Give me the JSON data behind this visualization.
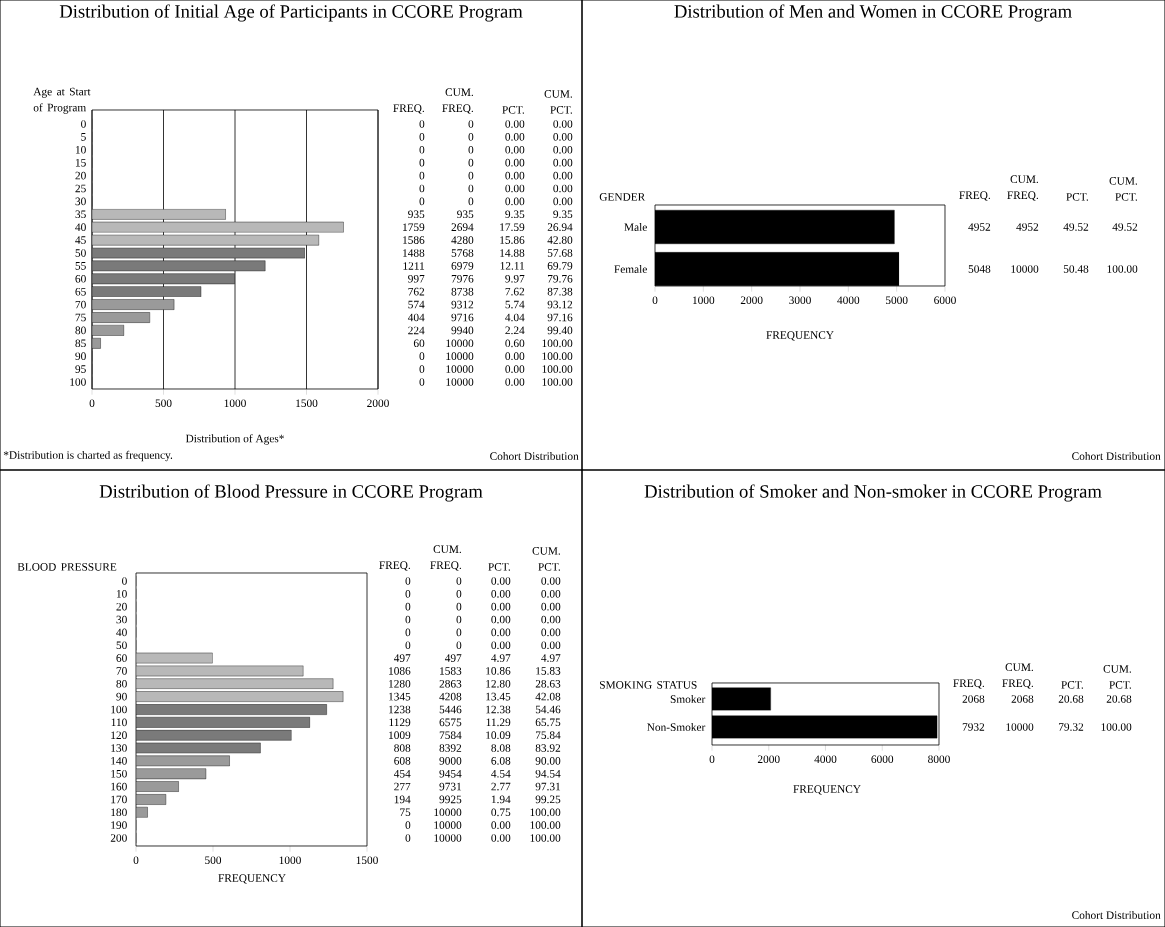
{
  "chart_data": [
    {
      "type": "bar",
      "orientation": "horizontal",
      "title": "Distribution of Initial Age of Participants in CCORE Program",
      "xlabel": "Distribution of Ages*",
      "ylabel": "Age at Start of Program",
      "categories": [
        "0",
        "5",
        "10",
        "15",
        "20",
        "25",
        "30",
        "35",
        "40",
        "45",
        "50",
        "55",
        "60",
        "65",
        "70",
        "75",
        "80",
        "85",
        "90",
        "95",
        "100"
      ],
      "values": [
        0,
        0,
        0,
        0,
        0,
        0,
        0,
        935,
        1759,
        1586,
        1488,
        1211,
        997,
        762,
        574,
        404,
        224,
        60,
        0,
        0,
        0
      ],
      "colors": [
        "#b8b8b8",
        "#b8b8b8",
        "#b8b8b8",
        "#b8b8b8",
        "#b8b8b8",
        "#b8b8b8",
        "#b8b8b8",
        "#b8b8b8",
        "#b8b8b8",
        "#b8b8b8",
        "#7a7a7a",
        "#7a7a7a",
        "#7a7a7a",
        "#7a7a7a",
        "#9a9a9a",
        "#9a9a9a",
        "#9a9a9a",
        "#9a9a9a",
        "#b8b8b8",
        "#b8b8b8",
        "#b8b8b8"
      ],
      "xlim": [
        0,
        2000
      ],
      "xticks": [
        0,
        500,
        1000,
        1500,
        2000
      ],
      "grid": "x",
      "data_labels": true,
      "annotations": [
        "FREQ.",
        "CUM. FREQ.",
        "PCT.",
        "CUM. PCT.",
        "0",
        "0",
        "0",
        "0",
        "0",
        "0",
        "0",
        "935",
        "2694",
        "4280",
        "5768",
        "6979",
        "7976",
        "8738",
        "9312",
        "9716",
        "9940",
        "10000",
        "10000",
        "10000",
        "10000",
        "0.00",
        "0.00",
        "0.00",
        "0.00",
        "0.00",
        "0.00",
        "0.00",
        "9.35",
        "17.59",
        "15.86",
        "14.88",
        "12.11",
        "9.97",
        "7.62",
        "5.74",
        "4.04",
        "2.24",
        "0.60",
        "0.00",
        "0.00",
        "0.00",
        "0.00",
        "0.00",
        "0.00",
        "0.00",
        "0.00",
        "0.00",
        "0.00",
        "9.35",
        "26.94",
        "42.80",
        "57.68",
        "69.79",
        "79.76",
        "87.38",
        "93.12",
        "97.16",
        "99.40",
        "100.00",
        "100.00",
        "100.00",
        "100.00",
        "*Distribution is charted as frequency.",
        "Cohort Distribution"
      ]
    },
    {
      "type": "bar",
      "orientation": "horizontal",
      "title": "Distribution of Men and Women in CCORE Program",
      "xlabel": "FREQUENCY",
      "ylabel": "GENDER",
      "categories": [
        "Male",
        "Female"
      ],
      "values": [
        4952,
        5048
      ],
      "colors": [
        "#000000",
        "#000000"
      ],
      "xlim": [
        0,
        6000
      ],
      "xticks": [
        0,
        1000,
        2000,
        3000,
        4000,
        5000,
        6000
      ],
      "data_labels": true,
      "annotations": [
        "FREQ.",
        "CUM. FREQ.",
        "PCT.",
        "CUM. PCT.",
        "4952",
        "10000",
        "49.52",
        "50.48",
        "49.52",
        "100.00",
        "Cohort Distribution"
      ]
    },
    {
      "type": "bar",
      "orientation": "horizontal",
      "title": "Distribution of Blood Pressure in CCORE Program",
      "xlabel": "FREQUENCY",
      "ylabel": "BLOOD PRESSURE",
      "categories": [
        "0",
        "10",
        "20",
        "30",
        "40",
        "50",
        "60",
        "70",
        "80",
        "90",
        "100",
        "110",
        "120",
        "130",
        "140",
        "150",
        "160",
        "170",
        "180",
        "190",
        "200"
      ],
      "values": [
        0,
        0,
        0,
        0,
        0,
        0,
        497,
        1086,
        1280,
        1345,
        1238,
        1129,
        1009,
        808,
        608,
        454,
        277,
        194,
        75,
        0,
        0
      ],
      "colors": [
        "#b8b8b8",
        "#b8b8b8",
        "#b8b8b8",
        "#b8b8b8",
        "#b8b8b8",
        "#b8b8b8",
        "#b8b8b8",
        "#b8b8b8",
        "#b8b8b8",
        "#b8b8b8",
        "#7a7a7a",
        "#7a7a7a",
        "#7a7a7a",
        "#7a7a7a",
        "#9a9a9a",
        "#9a9a9a",
        "#9a9a9a",
        "#9a9a9a",
        "#9a9a9a",
        "#b8b8b8",
        "#b8b8b8"
      ],
      "xlim": [
        0,
        1500
      ],
      "xticks": [
        0,
        500,
        1000,
        1500
      ],
      "data_labels": true,
      "annotations": [
        "FREQ.",
        "CUM. FREQ.",
        "PCT.",
        "CUM. PCT.",
        "0",
        "0",
        "0",
        "0",
        "0",
        "0",
        "497",
        "1583",
        "2863",
        "4208",
        "5446",
        "6575",
        "7584",
        "8392",
        "9000",
        "9454",
        "9731",
        "9925",
        "10000",
        "10000",
        "10000",
        "0.00",
        "0.00",
        "0.00",
        "0.00",
        "0.00",
        "0.00",
        "4.97",
        "10.86",
        "12.80",
        "13.45",
        "12.38",
        "11.29",
        "10.09",
        "8.08",
        "6.08",
        "4.54",
        "2.77",
        "1.94",
        "0.75",
        "0.00",
        "0.00",
        "0.00",
        "0.00",
        "0.00",
        "0.00",
        "0.00",
        "0.00",
        "4.97",
        "15.83",
        "28.63",
        "42.08",
        "54.46",
        "65.75",
        "75.84",
        "83.92",
        "90.00",
        "94.54",
        "97.31",
        "99.25",
        "100.00",
        "100.00",
        "100.00"
      ]
    },
    {
      "type": "bar",
      "orientation": "horizontal",
      "title": "Distribution of Smoker and Non-smoker in CCORE Program",
      "xlabel": "FREQUENCY",
      "ylabel": "SMOKING STATUS",
      "categories": [
        "Smoker",
        "Non-Smoker"
      ],
      "values": [
        2068,
        7932
      ],
      "colors": [
        "#000000",
        "#000000"
      ],
      "xlim": [
        0,
        8000
      ],
      "xticks": [
        0,
        2000,
        4000,
        6000,
        8000
      ],
      "data_labels": true,
      "annotations": [
        "FREQ.",
        "CUM. FREQ.",
        "PCT.",
        "CUM. PCT.",
        "2068",
        "10000",
        "20.68",
        "79.32",
        "20.68",
        "100.00",
        "Cohort Distribution"
      ]
    }
  ]
}
